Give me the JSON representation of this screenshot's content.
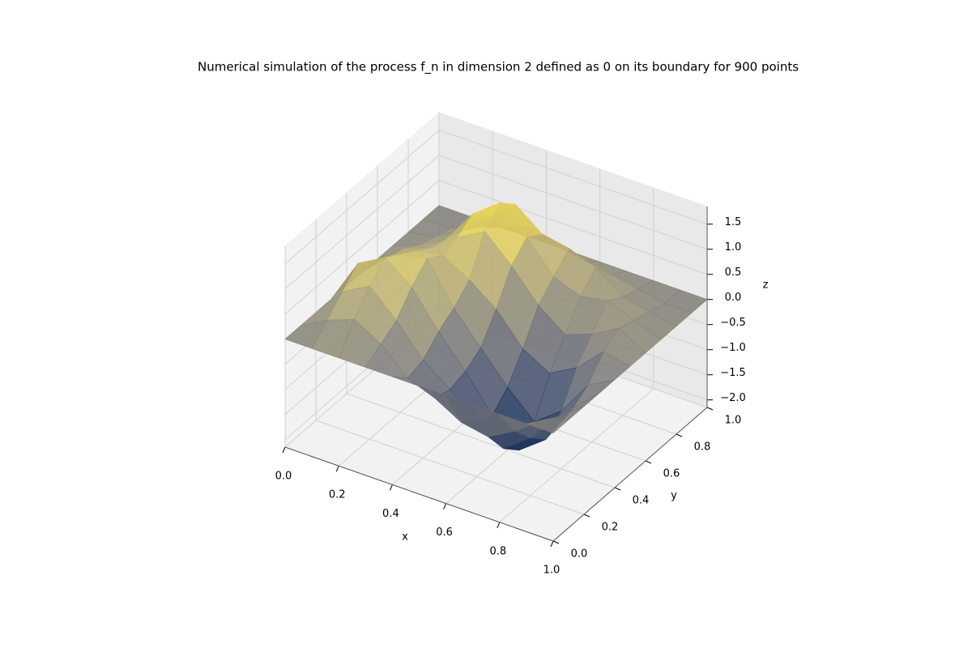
{
  "chart_data": {
    "type": "surface",
    "title": "Numerical simulation of the process f_n in dimension 2 defined as 0 on its boundary for 900 points",
    "xlabel": "x",
    "ylabel": "y",
    "zlabel": "z",
    "x": [
      0,
      0.1,
      0.2,
      0.3,
      0.4,
      0.5,
      0.6,
      0.7,
      0.8,
      0.9,
      1
    ],
    "y": [
      0,
      0.1,
      0.2,
      0.3,
      0.4,
      0.5,
      0.6,
      0.7,
      0.8,
      0.9,
      1
    ],
    "z": [
      [
        0,
        0,
        0,
        0,
        0,
        0,
        0,
        0,
        0,
        0,
        0
      ],
      [
        0,
        0.3,
        0.5,
        0.2,
        -0.3,
        -0.5,
        -0.8,
        -0.9,
        -0.6,
        -0.2,
        0
      ],
      [
        0,
        0.6,
        0.9,
        0.4,
        -0.2,
        -0.6,
        -1.1,
        -1.4,
        -1.0,
        -0.4,
        0
      ],
      [
        0,
        0.9,
        1.2,
        0.8,
        0.1,
        -0.5,
        -1.2,
        -1.7,
        -1.3,
        -0.5,
        0
      ],
      [
        0,
        0.7,
        1.0,
        1.1,
        0.3,
        -0.3,
        -0.9,
        -1.4,
        -1.0,
        -0.3,
        0
      ],
      [
        0,
        0.5,
        0.8,
        0.9,
        0.6,
        0.2,
        -0.4,
        -0.7,
        -0.4,
        0.1,
        0
      ],
      [
        0,
        0.4,
        0.6,
        1.0,
        1.3,
        0.8,
        0.2,
        -0.2,
        0.0,
        0.3,
        0
      ],
      [
        0,
        0.2,
        0.5,
        1.2,
        1.6,
        1.1,
        0.5,
        0.3,
        0.4,
        0.2,
        0
      ],
      [
        0,
        0.1,
        0.4,
        0.9,
        1.3,
        0.9,
        0.8,
        0.6,
        0.2,
        0.1,
        0
      ],
      [
        0,
        0.0,
        0.2,
        0.4,
        0.6,
        0.4,
        0.3,
        0.2,
        0.1,
        0.0,
        0
      ],
      [
        0,
        0,
        0,
        0,
        0,
        0,
        0,
        0,
        0,
        0,
        0
      ]
    ],
    "xlim": [
      0,
      1
    ],
    "ylim": [
      0,
      1
    ],
    "zlim": [
      -2.15,
      1.85
    ],
    "xticks": [
      {
        "value": 0,
        "label": "0.0"
      },
      0.2,
      0.4,
      0.6,
      0.8,
      {
        "value": 1,
        "label": "1.0"
      }
    ],
    "yticks": [
      {
        "value": 0,
        "label": "0.0"
      },
      0.2,
      0.4,
      0.6,
      0.8,
      {
        "value": 1,
        "label": "1.0"
      }
    ],
    "zticks": [
      {
        "value": -2,
        "label": "−2.0"
      },
      {
        "value": -1.5,
        "label": "−1.5"
      },
      {
        "value": -1,
        "label": "−1.0"
      },
      {
        "value": -0.5,
        "label": "−0.5"
      },
      {
        "value": 0,
        "label": "0.0"
      },
      0.5,
      {
        "value": 1,
        "label": "1.0"
      },
      1.5
    ],
    "colormap": "cividis",
    "grid": true
  }
}
